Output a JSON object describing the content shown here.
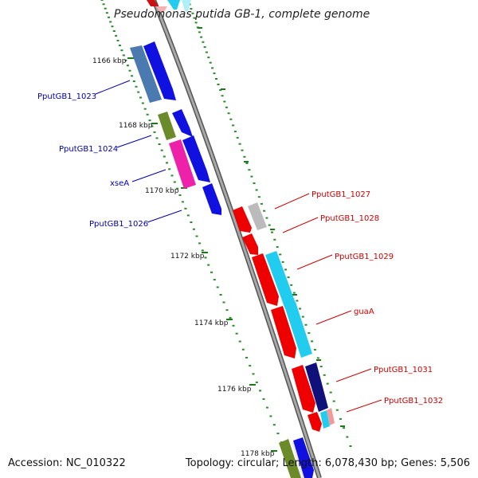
{
  "title": "Pseudomonas putida GB-1, complete genome",
  "footer": {
    "accession": "Accession: NC_010322",
    "topology": "Topology: circular; Length: 6,078,430 bp; Genes: 5,506"
  },
  "ruler_labels": [
    "1166 kbp",
    "1168 kbp",
    "1170 kbp",
    "1172 kbp",
    "1174 kbp",
    "1176 kbp",
    "1178 kbp"
  ],
  "genes_left": [
    "PputGB1_1023",
    "PputGB1_1024",
    "xseA",
    "PputGB1_1026"
  ],
  "genes_right": [
    "PputGB1_1027",
    "PputGB1_1028",
    "PputGB1_1029",
    "guaA",
    "PputGB1_1031",
    "PputGB1_1032"
  ],
  "colors": {
    "backbone": "#888888",
    "ruler_ticks": "#2a8a2a",
    "label_left": "#0000aa",
    "label_right": "#cc0000",
    "cds_blue": "#1010e0",
    "cds_red": "#ee0000",
    "cds_cyan": "#22ccee",
    "cds_navy": "#10107a",
    "cat_steelblue": "#4a7ab0",
    "cat_olive": "#6b8a2a",
    "cat_magenta": "#ee22aa",
    "cat_grey": "#bbbbbb",
    "cat_pink": "#f29a9a"
  }
}
